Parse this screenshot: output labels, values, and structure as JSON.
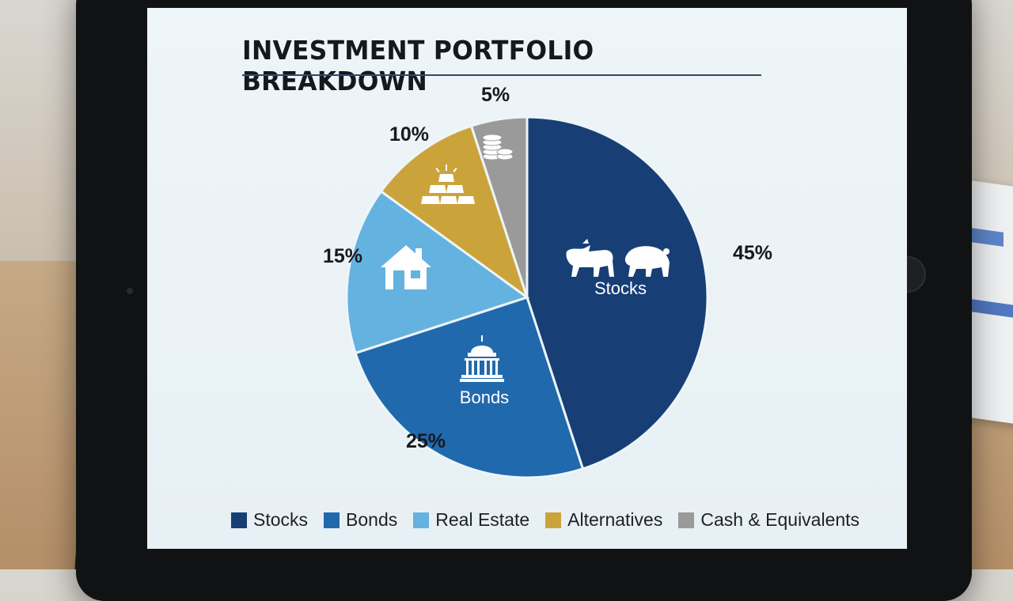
{
  "chart_data": {
    "type": "pie",
    "title": "INVESTMENT PORTFOLIO BREAKDOWN",
    "slices": [
      {
        "name": "Stocks",
        "value": 45,
        "label": "45%",
        "inner_label": "Stocks",
        "color": "#173f75",
        "icon": "bull-bear-icon"
      },
      {
        "name": "Bonds",
        "value": 25,
        "label": "25%",
        "inner_label": "Bonds",
        "color": "#2169ad",
        "icon": "capitol-building-icon"
      },
      {
        "name": "Real Estate",
        "value": 15,
        "label": "15%",
        "inner_label": "",
        "color": "#64b2e0",
        "icon": "house-icon"
      },
      {
        "name": "Alternatives",
        "value": 10,
        "label": "10%",
        "inner_label": "",
        "color": "#caa43b",
        "icon": "gold-bars-icon"
      },
      {
        "name": "Cash & Equivalents",
        "value": 5,
        "label": "5%",
        "inner_label": "",
        "color": "#9a9a9a",
        "icon": "coins-icon"
      }
    ],
    "legend": {
      "placement": "bottom",
      "entries": [
        "Stocks",
        "Bonds",
        "Real Estate",
        "Alternatives",
        "Cash & Equivalents"
      ]
    }
  }
}
